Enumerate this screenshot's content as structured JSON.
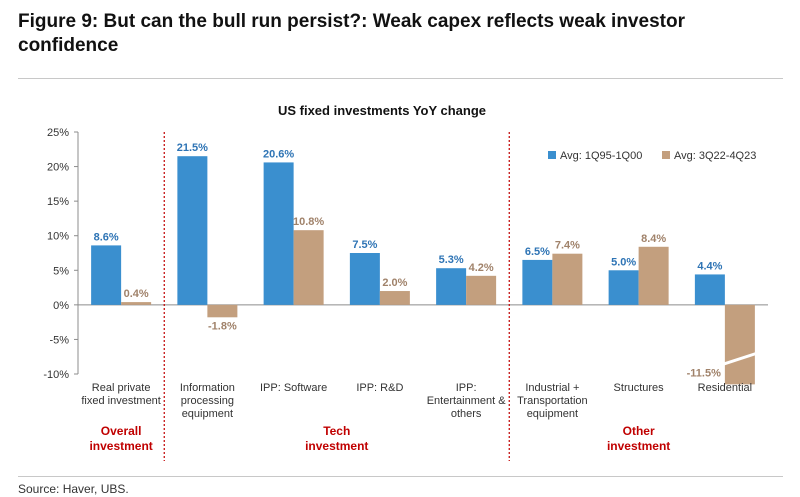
{
  "figure": {
    "title": "Figure 9: But can the bull run persist?: Weak capex reflects weak investor confidence",
    "source": "Source: Haver, UBS."
  },
  "chart_data": {
    "type": "bar",
    "title": "US fixed investments YoY change",
    "xlabel": "",
    "ylabel": "",
    "ylim": [
      -10,
      25
    ],
    "yticks": [
      25,
      20,
      15,
      10,
      5,
      0,
      -5,
      -10
    ],
    "ytick_labels": [
      "25%",
      "20%",
      "15%",
      "10%",
      "5%",
      "0%",
      "-5%",
      "-10%"
    ],
    "y_unit": "%",
    "grid": false,
    "legend_position": "top-right",
    "categories": [
      [
        "Real private",
        "fixed investment"
      ],
      [
        "Information",
        "processing",
        "equipment"
      ],
      [
        "IPP: Software"
      ],
      [
        "IPP: R&D"
      ],
      [
        "IPP:",
        "Entertainment &",
        "others"
      ],
      [
        "Industrial +",
        "Transportation",
        "equipment"
      ],
      [
        "Structures"
      ],
      [
        "Residential"
      ]
    ],
    "series": [
      {
        "name": "Avg: 1Q95-1Q00",
        "color": "#3a8fcf",
        "values": [
          8.6,
          21.5,
          20.6,
          7.5,
          5.3,
          6.5,
          5.0,
          4.4
        ],
        "labels": [
          "8.6%",
          "21.5%",
          "20.6%",
          "7.5%",
          "5.3%",
          "6.5%",
          "5.0%",
          "4.4%"
        ]
      },
      {
        "name": "Avg: 3Q22-4Q23",
        "color": "#c39f7e",
        "values": [
          0.4,
          -1.8,
          10.8,
          2.0,
          4.2,
          7.4,
          8.4,
          -11.5
        ],
        "labels": [
          "0.4%",
          "-1.8%",
          "10.8%",
          "2.0%",
          "4.2%",
          "7.4%",
          "8.4%",
          "-11.5%"
        ]
      }
    ],
    "group_labels": [
      {
        "lines": [
          "Overall",
          "investment"
        ],
        "color": "#c00000"
      },
      {
        "lines": [
          "Tech",
          "investment"
        ],
        "color": "#c00000"
      },
      {
        "lines": [
          "Other",
          "investment"
        ],
        "color": "#c00000"
      }
    ],
    "colors": {
      "label_blue": "#2e74b5",
      "label_tan": "#a0826a",
      "divider": "#c00000",
      "axis": "#8c8c8c"
    }
  }
}
